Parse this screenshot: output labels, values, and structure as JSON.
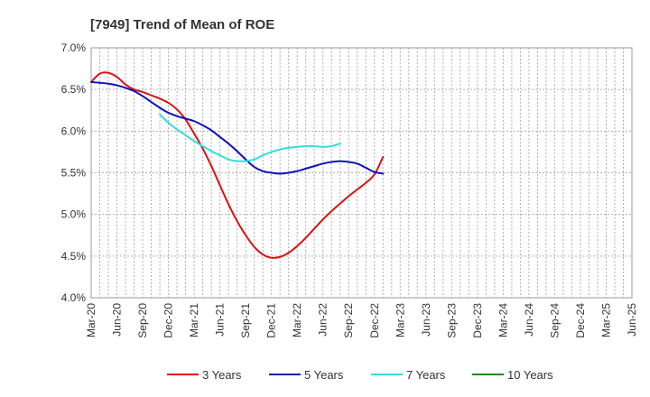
{
  "chart_data": {
    "type": "line",
    "title": "[7949]  Trend of Mean of ROE",
    "xlabel": "",
    "ylabel": "",
    "x_ticks": [
      "Mar-20",
      "Jun-20",
      "Sep-20",
      "Dec-20",
      "Mar-21",
      "Jun-21",
      "Sep-21",
      "Dec-21",
      "Mar-22",
      "Jun-22",
      "Sep-22",
      "Dec-22",
      "Mar-23",
      "Jun-23",
      "Sep-23",
      "Dec-23",
      "Mar-24",
      "Jun-24",
      "Sep-24",
      "Dec-24",
      "Mar-25",
      "Jun-25"
    ],
    "y_ticks": [
      "7.0%",
      "6.5%",
      "6.0%",
      "5.5%",
      "5.0%",
      "4.5%",
      "4.0%"
    ],
    "y_tick_values": [
      7.0,
      6.5,
      6.0,
      5.5,
      5.0,
      4.5,
      4.0
    ],
    "ylim": [
      4.0,
      7.0
    ],
    "grid": true,
    "legend_position": "bottom",
    "series": [
      {
        "name": "3 Years",
        "color": "#dd1111",
        "start_index": 0,
        "values": [
          6.59,
          6.69,
          6.7,
          6.65,
          6.56,
          6.5,
          6.47,
          6.43,
          6.39,
          6.34,
          6.26,
          6.14,
          5.97,
          5.79,
          5.58,
          5.35,
          5.12,
          4.92,
          4.75,
          4.61,
          4.52,
          4.48,
          4.49,
          4.54,
          4.62,
          4.72,
          4.83,
          4.94,
          5.04,
          5.13,
          5.22,
          5.3,
          5.38,
          5.48,
          5.69
        ]
      },
      {
        "name": "5 Years",
        "color": "#1111bb",
        "start_index": 0,
        "values": [
          6.59,
          6.58,
          6.57,
          6.55,
          6.52,
          6.48,
          6.42,
          6.35,
          6.28,
          6.22,
          6.18,
          6.15,
          6.12,
          6.07,
          6.01,
          5.93,
          5.85,
          5.76,
          5.66,
          5.57,
          5.52,
          5.5,
          5.49,
          5.5,
          5.52,
          5.55,
          5.58,
          5.61,
          5.63,
          5.64,
          5.63,
          5.61,
          5.56,
          5.51,
          5.49
        ]
      },
      {
        "name": "7 Years",
        "color": "#33dddd",
        "start_index": 8,
        "values": [
          6.2,
          6.1,
          6.02,
          5.95,
          5.88,
          5.82,
          5.76,
          5.71,
          5.66,
          5.64,
          5.64,
          5.66,
          5.71,
          5.75,
          5.78,
          5.8,
          5.81,
          5.82,
          5.82,
          5.81,
          5.82,
          5.85
        ]
      },
      {
        "name": "10 Years",
        "color": "#228822",
        "start_index": 0,
        "values": []
      }
    ]
  }
}
